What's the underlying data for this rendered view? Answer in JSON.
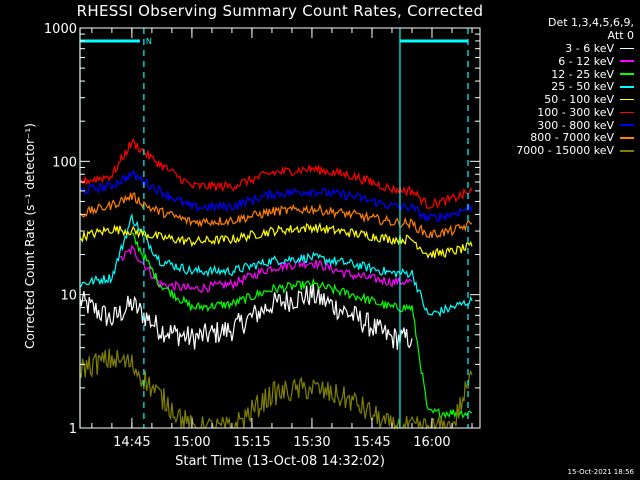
{
  "chart_data": {
    "type": "line",
    "title": "RHESSI Observing Summary Count Rates, Corrected",
    "xlabel": "Start Time (13-Oct-08 14:32:02)",
    "ylabel": "Corrected Count Rate (s⁻¹ detector⁻¹)",
    "y_scale": "log",
    "ylim": [
      1,
      1000
    ],
    "y_ticks": [
      1,
      10,
      100,
      1000
    ],
    "y_tick_labels": [
      "1",
      "10",
      "100",
      "1000"
    ],
    "xlim": [
      "14:32:02",
      "16:12:00"
    ],
    "x_ticks": [
      "14:45",
      "15:00",
      "15:15",
      "15:30",
      "15:45",
      "16:00"
    ],
    "legend_header": [
      "Det 1,3,4,5,6,9,",
      "Att 0"
    ],
    "legend_position": "right",
    "series": [
      {
        "name": "3 - 6 keV",
        "color": "#ffffff",
        "x": [
          "14:32",
          "14:40",
          "14:45",
          "14:52",
          "15:00",
          "15:10",
          "15:20",
          "15:30",
          "15:40",
          "15:50",
          "15:55"
        ],
        "y": [
          9,
          6.5,
          8.5,
          5.5,
          4.7,
          5.5,
          8.5,
          10,
          7,
          4.7,
          4.7
        ]
      },
      {
        "name": "6 - 12 keV",
        "color": "#ff00ff",
        "x": [
          "14:42",
          "14:45",
          "14:52",
          "15:00",
          "15:10",
          "15:20",
          "15:30",
          "15:40",
          "15:50",
          "15:55"
        ],
        "y": [
          18,
          22,
          12,
          11,
          12,
          16,
          17.5,
          14,
          12.5,
          12.5
        ]
      },
      {
        "name": "12 - 25 keV",
        "color": "#00ff00",
        "x": [
          "14:45",
          "14:52",
          "15:00",
          "15:10",
          "15:20",
          "15:30",
          "15:40",
          "15:50",
          "15:55",
          "15:59",
          "16:10"
        ],
        "y": [
          28,
          12,
          8,
          8.5,
          11,
          12,
          10,
          8,
          8,
          1.3,
          1.3
        ]
      },
      {
        "name": "25 - 50 keV",
        "color": "#00ffff",
        "x": [
          "14:32",
          "14:40",
          "14:45",
          "14:52",
          "15:00",
          "15:10",
          "15:20",
          "15:30",
          "15:40",
          "15:50",
          "15:55",
          "15:59",
          "16:05",
          "16:10"
        ],
        "y": [
          12,
          13.5,
          38,
          18,
          15,
          15,
          18,
          19,
          17,
          14.5,
          14.5,
          7,
          8,
          9
        ]
      },
      {
        "name": "50 - 100 keV",
        "color": "#ffff00",
        "x": [
          "14:32",
          "14:40",
          "14:45",
          "14:52",
          "15:00",
          "15:10",
          "15:20",
          "15:30",
          "15:40",
          "15:50",
          "15:55",
          "15:59",
          "16:05",
          "16:10"
        ],
        "y": [
          27,
          31,
          30,
          27,
          25,
          26,
          30,
          32,
          29,
          26,
          26,
          20,
          21,
          23
        ]
      },
      {
        "name": "100 - 300 keV",
        "color": "#ff0000",
        "x": [
          "14:32",
          "14:40",
          "14:45",
          "14:50",
          "15:00",
          "15:10",
          "15:20",
          "15:30",
          "15:40",
          "15:50",
          "15:55",
          "15:59",
          "16:05",
          "16:10"
        ],
        "y": [
          70,
          78,
          140,
          105,
          65,
          65,
          82,
          88,
          78,
          62,
          60,
          47,
          52,
          60
        ]
      },
      {
        "name": "300 - 800 keV",
        "color": "#0000ff",
        "x": [
          "14:32",
          "14:40",
          "14:45",
          "14:50",
          "15:00",
          "15:10",
          "15:20",
          "15:30",
          "15:40",
          "15:50",
          "15:55",
          "15:59",
          "16:05",
          "16:10"
        ],
        "y": [
          60,
          66,
          80,
          65,
          45,
          46,
          57,
          60,
          55,
          46,
          45,
          37,
          40,
          46
        ]
      },
      {
        "name": "800 - 7000 keV",
        "color": "#ff8000",
        "x": [
          "14:32",
          "14:40",
          "14:45",
          "14:50",
          "15:00",
          "15:10",
          "15:20",
          "15:30",
          "15:40",
          "15:50",
          "15:55",
          "15:59",
          "16:05",
          "16:10"
        ],
        "y": [
          40,
          47,
          55,
          44,
          35,
          36,
          42,
          44,
          40,
          35,
          34,
          28,
          30,
          34
        ]
      },
      {
        "name": "7000 - 15000 keV",
        "color": "#808000",
        "x": [
          "14:32",
          "14:40",
          "14:45",
          "14:50",
          "15:00",
          "15:10",
          "15:20",
          "15:30",
          "15:40",
          "15:50",
          "15:55",
          "15:59",
          "16:05",
          "16:10"
        ],
        "y": [
          2.8,
          3.3,
          3,
          2,
          1,
          1,
          1.8,
          2,
          1.6,
          1,
          1,
          1,
          1,
          2.5
        ]
      }
    ],
    "markers": {
      "solid_cyan_lines": [
        "14:32:02",
        "15:52"
      ],
      "dashed_cyan_lines": [
        "14:48",
        "16:09"
      ],
      "top_cyan_bars": [
        [
          "14:32:02",
          "14:47"
        ],
        [
          "15:52",
          "16:09"
        ]
      ],
      "top_annotation": "N"
    }
  },
  "timestamp": "15-Oct-2021 18:56"
}
